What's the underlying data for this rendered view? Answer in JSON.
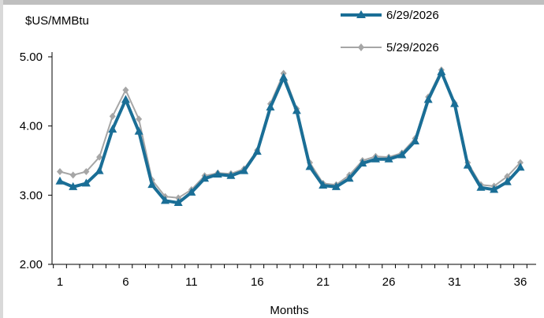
{
  "chart_data": {
    "type": "line",
    "ylabel": "$US/MMBtu",
    "xlabel": "Months",
    "ylim": [
      2.0,
      5.0
    ],
    "yticks": [
      "2.00",
      "3.00",
      "4.00",
      "5.00"
    ],
    "xlim": [
      1,
      36
    ],
    "xticks": [
      "1",
      "6",
      "11",
      "16",
      "21",
      "26",
      "31",
      "36"
    ],
    "grid": false,
    "legend": "top-right",
    "x": [
      1,
      2,
      3,
      4,
      5,
      6,
      7,
      8,
      9,
      10,
      11,
      12,
      13,
      14,
      15,
      16,
      17,
      18,
      19,
      20,
      21,
      22,
      23,
      24,
      25,
      26,
      27,
      28,
      29,
      30,
      31,
      32,
      33,
      34,
      35,
      36
    ],
    "series": [
      {
        "name": "6/29/2026",
        "color": "#1a6e96",
        "marker": "triangle",
        "values": [
          3.2,
          3.12,
          3.17,
          3.35,
          3.95,
          4.38,
          3.92,
          3.15,
          2.92,
          2.89,
          3.04,
          3.24,
          3.3,
          3.28,
          3.35,
          3.63,
          4.27,
          4.7,
          4.22,
          3.41,
          3.14,
          3.12,
          3.24,
          3.46,
          3.52,
          3.52,
          3.58,
          3.78,
          4.38,
          4.78,
          4.32,
          3.43,
          3.11,
          3.08,
          3.19,
          3.4
        ]
      },
      {
        "name": "5/29/2026",
        "color": "#a6a6a6",
        "marker": "diamond",
        "values": [
          3.34,
          3.29,
          3.34,
          3.55,
          4.14,
          4.52,
          4.1,
          3.22,
          2.98,
          2.96,
          3.08,
          3.28,
          3.32,
          3.31,
          3.38,
          3.65,
          4.32,
          4.76,
          4.25,
          3.47,
          3.17,
          3.15,
          3.29,
          3.5,
          3.56,
          3.55,
          3.61,
          3.82,
          4.42,
          4.81,
          4.33,
          3.47,
          3.15,
          3.13,
          3.27,
          3.47
        ]
      }
    ]
  }
}
